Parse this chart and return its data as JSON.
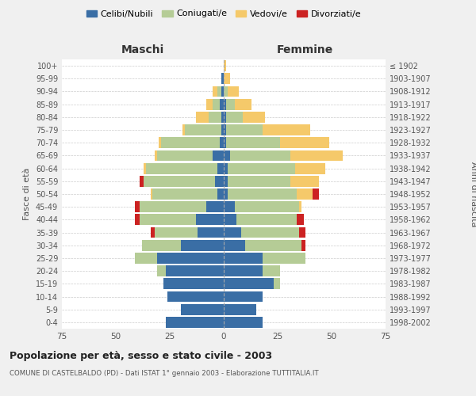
{
  "age_groups": [
    "0-4",
    "5-9",
    "10-14",
    "15-19",
    "20-24",
    "25-29",
    "30-34",
    "35-39",
    "40-44",
    "45-49",
    "50-54",
    "55-59",
    "60-64",
    "65-69",
    "70-74",
    "75-79",
    "80-84",
    "85-89",
    "90-94",
    "95-99",
    "100+"
  ],
  "birth_years": [
    "1998-2002",
    "1993-1997",
    "1988-1992",
    "1983-1987",
    "1978-1982",
    "1973-1977",
    "1968-1972",
    "1963-1967",
    "1958-1962",
    "1953-1957",
    "1948-1952",
    "1943-1947",
    "1938-1942",
    "1933-1937",
    "1928-1932",
    "1923-1927",
    "1918-1922",
    "1913-1917",
    "1908-1912",
    "1903-1907",
    "≤ 1902"
  ],
  "colors": {
    "celibi": "#3a6ea5",
    "coniugati": "#b5cc96",
    "vedovi": "#f5c96a",
    "divorziati": "#cc2222"
  },
  "maschi": {
    "celibi": [
      27,
      20,
      26,
      28,
      27,
      31,
      20,
      12,
      13,
      8,
      3,
      4,
      3,
      5,
      2,
      1,
      1,
      2,
      1,
      1,
      0
    ],
    "coniugati": [
      0,
      0,
      0,
      0,
      4,
      10,
      18,
      20,
      26,
      31,
      30,
      33,
      33,
      26,
      27,
      17,
      6,
      3,
      2,
      0,
      0
    ],
    "vedovi": [
      0,
      0,
      0,
      0,
      0,
      0,
      0,
      0,
      0,
      0,
      1,
      0,
      1,
      1,
      1,
      1,
      6,
      3,
      2,
      0,
      0
    ],
    "divorziati": [
      0,
      0,
      0,
      0,
      0,
      0,
      0,
      2,
      2,
      2,
      0,
      2,
      0,
      0,
      0,
      0,
      0,
      0,
      0,
      0,
      0
    ]
  },
  "femmine": {
    "celibi": [
      18,
      15,
      18,
      23,
      18,
      18,
      10,
      8,
      6,
      5,
      2,
      2,
      2,
      3,
      1,
      1,
      1,
      1,
      0,
      0,
      0
    ],
    "coniugati": [
      0,
      0,
      0,
      3,
      8,
      20,
      26,
      27,
      28,
      30,
      32,
      29,
      31,
      28,
      25,
      17,
      8,
      4,
      2,
      0,
      0
    ],
    "vedovi": [
      0,
      0,
      0,
      0,
      0,
      0,
      0,
      0,
      0,
      1,
      7,
      13,
      14,
      24,
      23,
      22,
      10,
      8,
      5,
      3,
      1
    ],
    "divorziati": [
      0,
      0,
      0,
      0,
      0,
      0,
      2,
      3,
      3,
      0,
      3,
      0,
      0,
      0,
      0,
      0,
      0,
      0,
      0,
      0,
      0
    ]
  },
  "xlim": 75,
  "title": "Popolazione per età, sesso e stato civile - 2003",
  "subtitle": "COMUNE DI CASTELBALDO (PD) - Dati ISTAT 1° gennaio 2003 - Elaborazione TUTTITALIA.IT",
  "ylabel_left": "Fasce di età",
  "ylabel_right": "Anni di nascita",
  "xlabel_maschi": "Maschi",
  "xlabel_femmine": "Femmine",
  "legend_labels": [
    "Celibi/Nubili",
    "Coniugati/e",
    "Vedovi/e",
    "Divorziati/e"
  ],
  "bg_color": "#f0f0f0",
  "plot_bg": "#ffffff"
}
